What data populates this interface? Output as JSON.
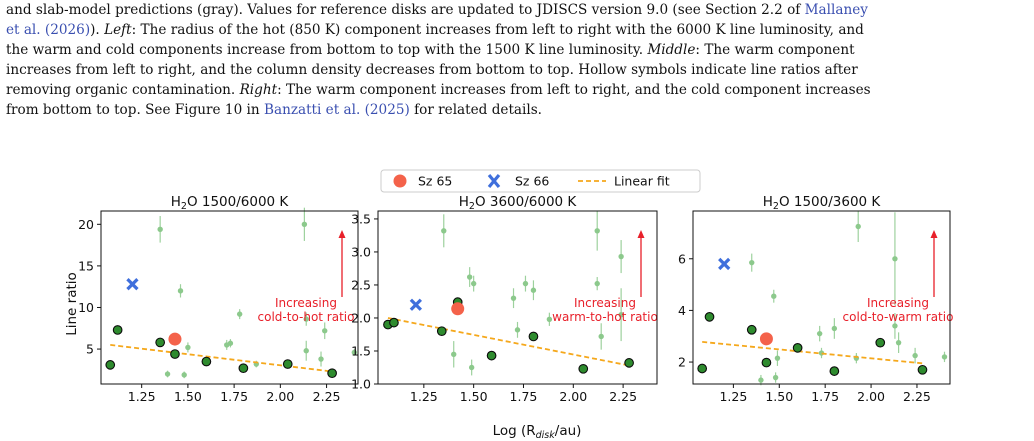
{
  "caption": {
    "line1_a": "and slab-model predictions (gray). Values for reference disks are updated to JDISCS version 9.0 (see Section 2.2 of ",
    "line1_link": "Mallaney",
    "line2_link": "et al. (2026)",
    "line2_a": "). ",
    "line2_left": "Left",
    "line2_b": ": The radius of the hot (850 K) component increases from left to right with the 6000 K line luminosity, and",
    "line3": "the warm and cold components increase from bottom to top with the 1500 K line luminosity. ",
    "line3_middle": "Middle",
    "line3_b": ": The warm component",
    "line4": "increases from left to right, and the column density decreases from bottom to top. Hollow symbols indicate line ratios after",
    "line5_a": "removing organic contamination. ",
    "line5_right": "Right",
    "line5_b": ": The warm component increases from left to right, and the cold component increases",
    "line6_a": "from bottom to top. See Figure 10 in ",
    "line6_link": "Banzatti et al. (2025)",
    "line6_b": " for related details."
  },
  "legend": {
    "sz65": "Sz 65",
    "sz66": "Sz 66",
    "fit": "Linear fit"
  },
  "colors": {
    "sz65": "#f4624a",
    "sz66": "#3f6fdc",
    "fit": "#f5a81c",
    "ref_green": "#8cc98c",
    "ref_dark": "#2e8b2e",
    "arrow": "#e8202a"
  },
  "xlabel": "Log (R",
  "xlabel_sub": "disk",
  "xlabel_end": "/au)",
  "ylabel": "Line ratio",
  "chart_data": [
    {
      "type": "scatter",
      "title_main": "H",
      "title_sub": "2",
      "title_rest": "O 1500/6000 K",
      "xlim": [
        1.03,
        2.42
      ],
      "ylim": [
        0.8,
        21.6
      ],
      "xticks": [
        "1.25",
        "1.50",
        "1.75",
        "2.00",
        "2.25"
      ],
      "xtick_values": [
        1.25,
        1.5,
        1.75,
        2.0,
        2.25
      ],
      "yticks": [
        "5",
        "10",
        "15",
        "20"
      ],
      "ytick_values": [
        5,
        10,
        15,
        20
      ],
      "annotation": [
        "Increasing",
        "cold-to-hot ratio"
      ],
      "reference_light": [
        {
          "x": 1.35,
          "y": 19.4,
          "err": 1.6
        },
        {
          "x": 1.46,
          "y": 12.0,
          "err": 0.8
        },
        {
          "x": 1.78,
          "y": 9.2,
          "err": 0.6
        },
        {
          "x": 2.13,
          "y": 20.0,
          "err": 2.0
        },
        {
          "x": 2.14,
          "y": 8.6,
          "err": 0.8
        },
        {
          "x": 1.71,
          "y": 5.5,
          "err": 0.6
        },
        {
          "x": 1.73,
          "y": 5.7,
          "err": 0.5
        },
        {
          "x": 1.5,
          "y": 5.2,
          "err": 0.6
        },
        {
          "x": 2.24,
          "y": 7.2,
          "err": 1.0
        },
        {
          "x": 2.14,
          "y": 4.8,
          "err": 1.2
        },
        {
          "x": 2.22,
          "y": 3.8,
          "err": 0.9
        },
        {
          "x": 2.4,
          "y": 4.6,
          "err": 0.4
        },
        {
          "x": 1.39,
          "y": 2.0,
          "err": 0.4
        },
        {
          "x": 1.48,
          "y": 1.9,
          "err": 0.4
        },
        {
          "x": 1.87,
          "y": 3.2,
          "err": 0.4
        }
      ],
      "reference_dark": [
        {
          "x": 1.08,
          "y": 3.1
        },
        {
          "x": 1.12,
          "y": 7.3
        },
        {
          "x": 1.35,
          "y": 5.8
        },
        {
          "x": 1.43,
          "y": 4.4
        },
        {
          "x": 1.6,
          "y": 3.5
        },
        {
          "x": 1.8,
          "y": 2.7
        },
        {
          "x": 2.04,
          "y": 3.2
        },
        {
          "x": 2.28,
          "y": 2.1
        }
      ],
      "sz65": {
        "x": 1.43,
        "y": 6.2
      },
      "sz66": {
        "x": 1.2,
        "y": 12.8
      },
      "fit": {
        "x": [
          1.08,
          2.28
        ],
        "y": [
          5.5,
          2.3
        ]
      }
    },
    {
      "type": "scatter",
      "title_main": "H",
      "title_sub": "2",
      "title_rest": "O 3600/6000 K",
      "xlim": [
        1.02,
        2.42
      ],
      "ylim": [
        1.0,
        3.62
      ],
      "xticks": [
        "1.25",
        "1.50",
        "1.75",
        "2.00",
        "2.25"
      ],
      "xtick_values": [
        1.25,
        1.5,
        1.75,
        2.0,
        2.25
      ],
      "yticks": [
        "1.0",
        "1.5",
        "2.0",
        "2.5",
        "3.0",
        "3.5"
      ],
      "ytick_values": [
        1.0,
        1.5,
        2.0,
        2.5,
        3.0,
        3.5
      ],
      "annotation": [
        "Increasing",
        "warm-to-hot ratio"
      ],
      "reference_light": [
        {
          "x": 1.35,
          "y": 3.32,
          "err": 0.25
        },
        {
          "x": 1.48,
          "y": 2.62,
          "err": 0.15
        },
        {
          "x": 1.5,
          "y": 2.52,
          "err": 0.12
        },
        {
          "x": 1.76,
          "y": 2.52,
          "err": 0.12
        },
        {
          "x": 1.7,
          "y": 2.3,
          "err": 0.15
        },
        {
          "x": 1.8,
          "y": 2.42,
          "err": 0.15
        },
        {
          "x": 2.12,
          "y": 3.32,
          "err": 0.3
        },
        {
          "x": 2.12,
          "y": 2.52,
          "err": 0.1
        },
        {
          "x": 2.24,
          "y": 2.93,
          "err": 0.25
        },
        {
          "x": 2.24,
          "y": 2.05,
          "err": 0.4
        },
        {
          "x": 2.14,
          "y": 1.72,
          "err": 0.2
        },
        {
          "x": 1.4,
          "y": 1.45,
          "err": 0.2
        },
        {
          "x": 1.49,
          "y": 1.25,
          "err": 0.12
        },
        {
          "x": 1.72,
          "y": 1.82,
          "err": 0.12
        },
        {
          "x": 1.88,
          "y": 1.98,
          "err": 0.1
        }
      ],
      "reference_dark": [
        {
          "x": 1.07,
          "y": 1.9
        },
        {
          "x": 1.1,
          "y": 1.93
        },
        {
          "x": 1.34,
          "y": 1.8
        },
        {
          "x": 1.42,
          "y": 2.24
        },
        {
          "x": 1.59,
          "y": 1.43
        },
        {
          "x": 1.8,
          "y": 1.72
        },
        {
          "x": 2.05,
          "y": 1.23
        },
        {
          "x": 2.28,
          "y": 1.32
        }
      ],
      "sz65": {
        "x": 1.42,
        "y": 2.14
      },
      "sz66": {
        "x": 1.21,
        "y": 2.2
      },
      "fit": {
        "x": [
          1.07,
          2.28
        ],
        "y": [
          2.0,
          1.28
        ]
      }
    },
    {
      "type": "scatter",
      "title_main": "H",
      "title_sub": "2",
      "title_rest": "O 1500/3600 K",
      "xlim": [
        1.03,
        2.43
      ],
      "ylim": [
        1.15,
        7.85
      ],
      "xticks": [
        "1.25",
        "1.50",
        "1.75",
        "2.00",
        "2.25"
      ],
      "xtick_values": [
        1.25,
        1.5,
        1.75,
        2.0,
        2.25
      ],
      "yticks": [
        "2",
        "4",
        "6"
      ],
      "ytick_values": [
        2,
        4,
        6
      ],
      "annotation": [
        "Increasing",
        "cold-to-warm ratio"
      ],
      "reference_light": [
        {
          "x": 1.35,
          "y": 5.85,
          "err": 0.35
        },
        {
          "x": 1.47,
          "y": 4.55,
          "err": 0.25
        },
        {
          "x": 1.93,
          "y": 7.25,
          "err": 0.6
        },
        {
          "x": 2.13,
          "y": 6.0,
          "err": 1.8
        },
        {
          "x": 2.13,
          "y": 3.4,
          "err": 0.5
        },
        {
          "x": 1.8,
          "y": 3.3,
          "err": 0.4
        },
        {
          "x": 1.72,
          "y": 3.1,
          "err": 0.3
        },
        {
          "x": 2.15,
          "y": 2.75,
          "err": 0.4
        },
        {
          "x": 2.24,
          "y": 2.25,
          "err": 0.3
        },
        {
          "x": 2.4,
          "y": 2.2,
          "err": 0.2
        },
        {
          "x": 1.4,
          "y": 1.3,
          "err": 0.2
        },
        {
          "x": 1.48,
          "y": 1.4,
          "err": 0.2
        },
        {
          "x": 1.49,
          "y": 2.15,
          "err": 0.3
        },
        {
          "x": 1.73,
          "y": 2.35,
          "err": 0.2
        },
        {
          "x": 1.92,
          "y": 2.15,
          "err": 0.2
        }
      ],
      "reference_dark": [
        {
          "x": 1.08,
          "y": 1.75
        },
        {
          "x": 1.12,
          "y": 3.75
        },
        {
          "x": 1.35,
          "y": 3.25
        },
        {
          "x": 1.43,
          "y": 1.98
        },
        {
          "x": 1.6,
          "y": 2.55
        },
        {
          "x": 1.8,
          "y": 1.65
        },
        {
          "x": 2.05,
          "y": 2.75
        },
        {
          "x": 2.28,
          "y": 1.7
        }
      ],
      "sz65": {
        "x": 1.43,
        "y": 2.9
      },
      "sz66": {
        "x": 1.2,
        "y": 5.8
      },
      "fit": {
        "x": [
          1.08,
          2.28
        ],
        "y": [
          2.78,
          1.95
        ]
      }
    }
  ]
}
